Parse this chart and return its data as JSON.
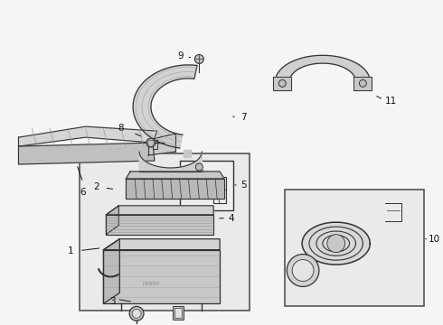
{
  "bg_color": "#f5f5f5",
  "line_color": "#333333",
  "label_color": "#111111",
  "fig_width": 4.9,
  "fig_height": 3.6,
  "dpi": 100
}
